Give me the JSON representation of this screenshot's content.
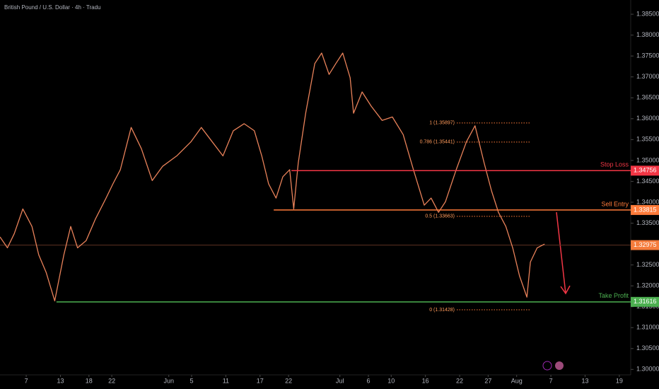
{
  "chart_data": {
    "type": "line",
    "title": "British Pound / U.S. Dollar · 4h · Tradu",
    "color": "#e9825a",
    "x": [
      1.4,
      2.7,
      3.9,
      5.4,
      7.0,
      8.2,
      9.5,
      11.0,
      12.6,
      13.8,
      15.0,
      16.5,
      18.1,
      20.0,
      21.2,
      22.5,
      24.4,
      26.2,
      28.1,
      29.9,
      32.4,
      34.9,
      36.7,
      38.6,
      40.5,
      42.3,
      44.2,
      46.0,
      47.3,
      48.5,
      49.8,
      51.0,
      52.2,
      52.9,
      53.7,
      55.0,
      56.6,
      57.8,
      59.1,
      60.3,
      61.5,
      62.8,
      63.4,
      64.9,
      66.5,
      68.4,
      70.2,
      72.1,
      73.9,
      75.8,
      77.0,
      78.3,
      79.5,
      81.4,
      83.2,
      84.7,
      86.3,
      87.6,
      88.8,
      90.1,
      91.3,
      92.5,
      93.8,
      94.4,
      95.6,
      96.9
    ],
    "values": [
      1.3317,
      1.3291,
      1.3325,
      1.3384,
      1.3342,
      1.3274,
      1.3232,
      1.3164,
      1.3274,
      1.3342,
      1.3291,
      1.3308,
      1.3359,
      1.341,
      1.3444,
      1.3478,
      1.3579,
      1.3528,
      1.3452,
      1.3486,
      1.3511,
      1.3545,
      1.3579,
      1.3545,
      1.3511,
      1.3571,
      1.3588,
      1.3571,
      1.3511,
      1.3444,
      1.341,
      1.3461,
      1.3478,
      1.3384,
      1.3494,
      1.3613,
      1.3732,
      1.3757,
      1.3706,
      1.3732,
      1.3757,
      1.3698,
      1.3613,
      1.3664,
      1.363,
      1.3596,
      1.3604,
      1.3562,
      1.3478,
      1.3393,
      1.341,
      1.3376,
      1.3401,
      1.3478,
      1.3545,
      1.3583,
      1.3494,
      1.3427,
      1.3376,
      1.3342,
      1.3291,
      1.3224,
      1.3173,
      1.3257,
      1.3291,
      1.33
    ],
    "xlim": [
      1.4,
      112
    ],
    "xticks": [
      {
        "value": 6,
        "label": "7"
      },
      {
        "value": 12,
        "label": "13"
      },
      {
        "value": 17,
        "label": "18"
      },
      {
        "value": 21,
        "label": "22"
      },
      {
        "value": 31,
        "label": "Jun"
      },
      {
        "value": 35,
        "label": "5"
      },
      {
        "value": 41,
        "label": "11"
      },
      {
        "value": 47,
        "label": "17"
      },
      {
        "value": 52,
        "label": "22"
      },
      {
        "value": 61,
        "label": "Jul"
      },
      {
        "value": 66,
        "label": "6"
      },
      {
        "value": 70,
        "label": "10"
      },
      {
        "value": 76,
        "label": "16"
      },
      {
        "value": 82,
        "label": "22"
      },
      {
        "value": 87,
        "label": "27"
      },
      {
        "value": 92,
        "label": "Aug"
      },
      {
        "value": 98,
        "label": "7"
      },
      {
        "value": 104,
        "label": "13"
      },
      {
        "value": 110,
        "label": "19"
      }
    ],
    "ylim": [
      1.2987,
      1.3884
    ],
    "yticks": [
      {
        "value": 1.3,
        "label": "1.30000"
      },
      {
        "value": 1.305,
        "label": "1.30500"
      },
      {
        "value": 1.31,
        "label": "1.31000"
      },
      {
        "value": 1.315,
        "label": "1.31500"
      },
      {
        "value": 1.32,
        "label": "1.32000"
      },
      {
        "value": 1.325,
        "label": "1.32500"
      },
      {
        "value": 1.33,
        "label": "1.33000"
      },
      {
        "value": 1.335,
        "label": "1.33500"
      },
      {
        "value": 1.34,
        "label": "1.34000"
      },
      {
        "value": 1.345,
        "label": "1.34500"
      },
      {
        "value": 1.35,
        "label": "1.35000"
      },
      {
        "value": 1.355,
        "label": "1.35500"
      },
      {
        "value": 1.36,
        "label": "1.36000"
      },
      {
        "value": 1.365,
        "label": "1.36500"
      },
      {
        "value": 1.37,
        "label": "1.37000"
      },
      {
        "value": 1.375,
        "label": "1.37500"
      },
      {
        "value": 1.38,
        "label": "1.38000"
      },
      {
        "value": 1.385,
        "label": "1.38500"
      }
    ],
    "levels": [
      {
        "label": "Stop Loss",
        "value": 1.34756,
        "color": "#f23645",
        "start": 52.5
      },
      {
        "label": "Sell Entry",
        "value": 1.33815,
        "color": "#ff7b3a",
        "start": 49.4
      },
      {
        "label": "Take Profit",
        "value": 1.31616,
        "color": "#4caf50",
        "start": 11.3
      }
    ],
    "current": {
      "value": 1.32975,
      "color": "#f57c3c"
    },
    "fib": [
      {
        "label": "1 (1.35897)",
        "value": 1.35897
      },
      {
        "label": "0.786 (1.35441)",
        "value": 1.35441
      },
      {
        "label": "0.5 (1.33663)",
        "value": 1.33663
      },
      {
        "label": "0 (1.31428)",
        "value": 1.31428
      }
    ]
  }
}
